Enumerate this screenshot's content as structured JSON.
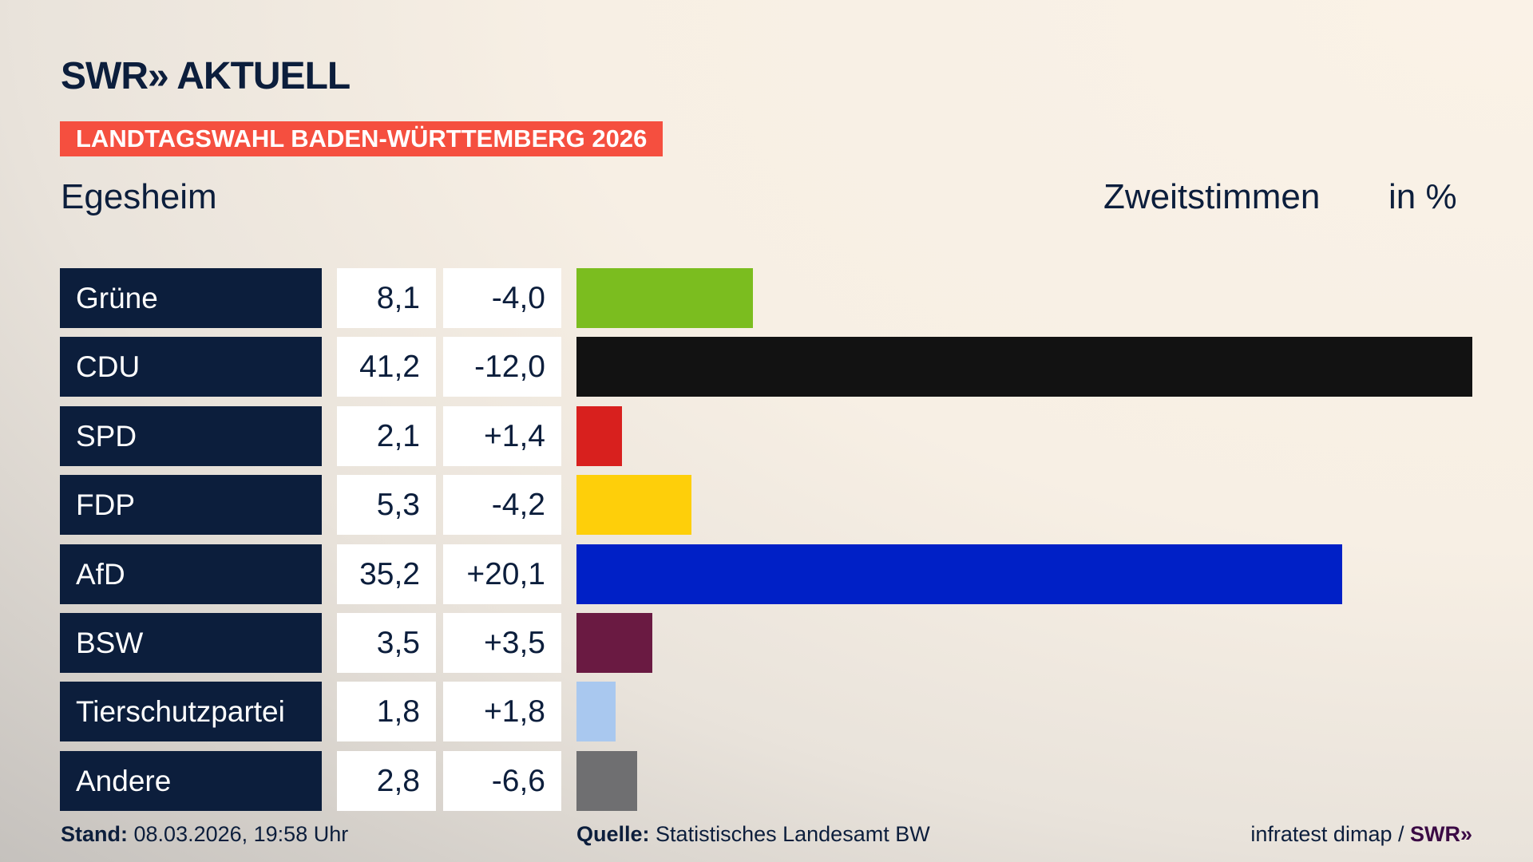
{
  "header": {
    "logo": "SWR» AKTUELL",
    "banner": "LANDTAGSWAHL BADEN-WÜRTTEMBERG 2026",
    "region": "Egesheim",
    "measure": "Zweitstimmen",
    "unit": "in %"
  },
  "chart_data": {
    "type": "bar",
    "orientation": "horizontal",
    "title": "Landtagswahl Baden-Württemberg 2026 – Egesheim, Zweitstimmen in %",
    "categories": [
      "Grüne",
      "CDU",
      "SPD",
      "FDP",
      "AfD",
      "BSW",
      "Tierschutzpartei",
      "Andere"
    ],
    "values": [
      8.1,
      41.2,
      2.1,
      5.3,
      35.2,
      3.5,
      1.8,
      2.8
    ],
    "value_labels": [
      "8,1",
      "41,2",
      "2,1",
      "5,3",
      "35,2",
      "3,5",
      "1,8",
      "2,8"
    ],
    "change_labels": [
      "-4,0",
      "-12,0",
      "+1,4",
      "-4,2",
      "+20,1",
      "+3,5",
      "+1,8",
      "-6,6"
    ],
    "changes": [
      -4.0,
      -12.0,
      1.4,
      -4.2,
      20.1,
      3.5,
      1.8,
      -6.6
    ],
    "colors": [
      "#7bbd1f",
      "#121212",
      "#d8201e",
      "#fecf0a",
      "#0020c6",
      "#6a1a42",
      "#a9c8ef",
      "#6f6f71"
    ],
    "xlim": [
      0,
      41.2
    ]
  },
  "footer": {
    "stand_label": "Stand:",
    "stand_value": "08.03.2026, 19:58 Uhr",
    "source_label": "Quelle:",
    "source_value": "Statistisches Landesamt BW",
    "credit": "infratest dimap / ",
    "credit_brand": "SWR»"
  }
}
